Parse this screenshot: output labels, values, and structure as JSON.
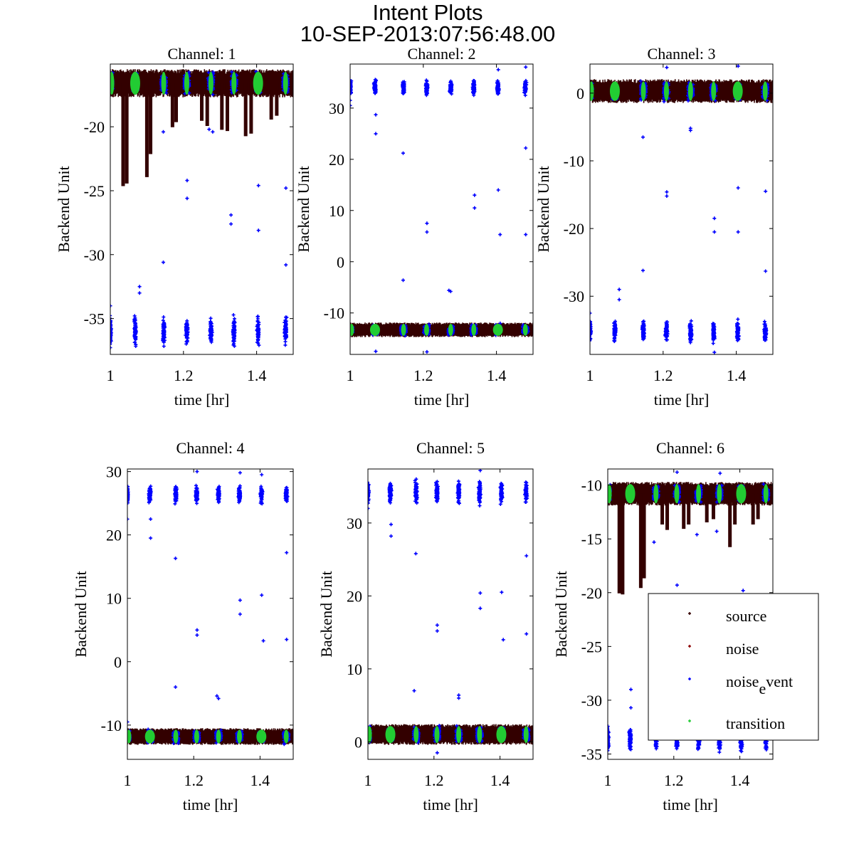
{
  "chart_data": {
    "type": "scatter",
    "title": "Intent Plots",
    "subtitle": "10-SEP-2013:07:56:48.00",
    "legend": {
      "placement": "inside-lower-right of Channel 6",
      "entries": [
        {
          "label": "source",
          "color": "#330000"
        },
        {
          "label": "noise",
          "color": "#8b0000"
        },
        {
          "label": "noise_event",
          "label_main": "noise",
          "label_sub": "e",
          "label_rest": "vent",
          "color": "#0000ff"
        },
        {
          "label": "transition",
          "color": "#22cc33"
        }
      ]
    },
    "colors": {
      "source": "#330000",
      "noise_event": "#0000ff",
      "transition": "#22cc33"
    },
    "event_times": [
      1.0,
      1.068,
      1.146,
      1.209,
      1.275,
      1.338,
      1.404,
      1.479
    ],
    "panels": [
      {
        "title": "Channel: 1",
        "xlabel": "time [hr]",
        "ylabel": "Backend Unit",
        "xlim": [
          1,
          1.5
        ],
        "ylim": [
          -37.8,
          -15.1
        ],
        "xticks": [
          1,
          1.2,
          1.4
        ],
        "xtick_labels": [
          "1",
          "1.2",
          "1.4"
        ],
        "yticks": [
          -20,
          -25,
          -30,
          -35
        ],
        "ytick_labels": [
          "-20",
          "-25",
          "-30",
          "-35"
        ],
        "source_band": {
          "center": -16.6,
          "half_width": 1.0
        },
        "event_level": {
          "center": -36.0,
          "half_width": 1.1
        },
        "dips": [
          [
            1.035,
            -24.5
          ],
          [
            1.045,
            -24.3
          ],
          [
            1.1,
            -23.8
          ],
          [
            1.11,
            -22.0
          ],
          [
            1.17,
            -19.9
          ],
          [
            1.18,
            -19.5
          ],
          [
            1.25,
            -19.4
          ],
          [
            1.265,
            -19.8
          ],
          [
            1.305,
            -20.1
          ],
          [
            1.32,
            -20.2
          ],
          [
            1.37,
            -20.6
          ],
          [
            1.385,
            -20.4
          ],
          [
            1.44,
            -19.3
          ],
          [
            1.455,
            -19.0
          ]
        ],
        "outliers": [
          [
            1.0,
            -34.0
          ],
          [
            1.08,
            -32.5
          ],
          [
            1.08,
            -33.0
          ],
          [
            1.145,
            -30.6
          ],
          [
            1.21,
            -24.2
          ],
          [
            1.21,
            -25.6
          ],
          [
            1.33,
            -26.9
          ],
          [
            1.33,
            -27.6
          ],
          [
            1.405,
            -24.6
          ],
          [
            1.405,
            -28.1
          ],
          [
            1.48,
            -24.8
          ],
          [
            1.48,
            -30.8
          ],
          [
            1.145,
            -20.4
          ],
          [
            1.27,
            -20.2
          ],
          [
            1.28,
            -20.4
          ],
          [
            1.21,
            -14.8
          ],
          [
            1.335,
            -14.7
          ],
          [
            1.48,
            -14.8
          ]
        ]
      },
      {
        "title": "Channel: 2",
        "xlabel": "time [hr]",
        "ylabel": "Backend Unit",
        "xlim": [
          1,
          1.5
        ],
        "ylim": [
          -18.1,
          38.6
        ],
        "xticks": [
          1,
          1.2,
          1.4
        ],
        "xtick_labels": [
          "1",
          "1.2",
          "1.4"
        ],
        "yticks": [
          30,
          20,
          10,
          0,
          -10
        ],
        "ytick_labels": [
          "30",
          "20",
          "10",
          "0",
          "-10"
        ],
        "source_band": {
          "center": -13.3,
          "half_width": 1.3
        },
        "event_level": {
          "center": 34.0,
          "half_width": 1.4
        },
        "dips": [],
        "outliers": [
          [
            1.0,
            30.5
          ],
          [
            1.0,
            31.5
          ],
          [
            1.07,
            28.7
          ],
          [
            1.07,
            25.0
          ],
          [
            1.145,
            21.2
          ],
          [
            1.145,
            -3.6
          ],
          [
            1.21,
            7.5
          ],
          [
            1.21,
            5.8
          ],
          [
            1.27,
            -5.6
          ],
          [
            1.275,
            -5.8
          ],
          [
            1.34,
            13.0
          ],
          [
            1.34,
            10.5
          ],
          [
            1.405,
            14.0
          ],
          [
            1.41,
            5.3
          ],
          [
            1.48,
            22.2
          ],
          [
            1.48,
            5.3
          ],
          [
            1.07,
            -17.5
          ],
          [
            1.21,
            -17.6
          ],
          [
            1.405,
            37.5
          ],
          [
            1.48,
            38.0
          ]
        ]
      },
      {
        "title": "Channel: 3",
        "xlabel": "time [hr]",
        "ylabel": "Backend Unit",
        "xlim": [
          1,
          1.5
        ],
        "ylim": [
          -38.6,
          4.3
        ],
        "xticks": [
          1,
          1.2,
          1.4
        ],
        "xtick_labels": [
          "1",
          "1.2",
          "1.4"
        ],
        "yticks": [
          0,
          -10,
          -20,
          -30
        ],
        "ytick_labels": [
          "0",
          "-10",
          "-20",
          "-30"
        ],
        "source_band": {
          "center": 0.3,
          "half_width": 1.6
        },
        "event_level": {
          "center": -35.2,
          "half_width": 1.5
        },
        "dips": [],
        "outliers": [
          [
            1.0,
            -32.5
          ],
          [
            1.08,
            -29.0
          ],
          [
            1.08,
            -30.5
          ],
          [
            1.145,
            -6.5
          ],
          [
            1.145,
            -26.2
          ],
          [
            1.21,
            -14.6
          ],
          [
            1.21,
            -15.2
          ],
          [
            1.275,
            -5.2
          ],
          [
            1.275,
            -5.5
          ],
          [
            1.34,
            -18.5
          ],
          [
            1.34,
            -20.5
          ],
          [
            1.405,
            -14.0
          ],
          [
            1.405,
            -20.5
          ],
          [
            1.48,
            -14.5
          ],
          [
            1.48,
            -26.3
          ],
          [
            1.21,
            3.8
          ],
          [
            1.405,
            4.0
          ],
          [
            1.34,
            -38.3
          ]
        ]
      },
      {
        "title": "Channel: 4",
        "xlabel": "time [hr]",
        "ylabel": "Backend Unit",
        "xlim": [
          1,
          1.5
        ],
        "ylim": [
          -15.4,
          30.4
        ],
        "xticks": [
          1,
          1.2,
          1.4
        ],
        "xtick_labels": [
          "1",
          "1.2",
          "1.4"
        ],
        "yticks": [
          30,
          20,
          10,
          0,
          -10
        ],
        "ytick_labels": [
          "30",
          "20",
          "10",
          "0",
          "-10"
        ],
        "source_band": {
          "center": -11.8,
          "half_width": 1.2
        },
        "event_level": {
          "center": 26.3,
          "half_width": 1.3
        },
        "dips": [],
        "outliers": [
          [
            1.0,
            22.5
          ],
          [
            1.07,
            22.5
          ],
          [
            1.07,
            19.5
          ],
          [
            1.145,
            16.3
          ],
          [
            1.145,
            -4.0
          ],
          [
            1.21,
            5.0
          ],
          [
            1.21,
            4.2
          ],
          [
            1.27,
            -5.4
          ],
          [
            1.275,
            -5.8
          ],
          [
            1.34,
            9.7
          ],
          [
            1.34,
            7.5
          ],
          [
            1.405,
            10.5
          ],
          [
            1.41,
            3.3
          ],
          [
            1.48,
            17.2
          ],
          [
            1.48,
            3.5
          ],
          [
            1.0,
            -9.5
          ],
          [
            1.21,
            30.0
          ],
          [
            1.34,
            29.8
          ],
          [
            1.405,
            29.5
          ]
        ]
      },
      {
        "title": "Channel: 5",
        "xlabel": "time [hr]",
        "ylabel": "Backend Unit",
        "xlim": [
          1,
          1.5
        ],
        "ylim": [
          -2.4,
          37.4
        ],
        "xticks": [
          1,
          1.2,
          1.4
        ],
        "xtick_labels": [
          "1",
          "1.2",
          "1.4"
        ],
        "yticks": [
          30,
          20,
          10,
          0
        ],
        "ytick_labels": [
          "30",
          "20",
          "10",
          "0"
        ],
        "source_band": {
          "center": 1.0,
          "half_width": 1.3
        },
        "event_level": {
          "center": 34.2,
          "half_width": 1.5
        },
        "dips": [],
        "outliers": [
          [
            1.07,
            29.8
          ],
          [
            1.07,
            28.2
          ],
          [
            1.145,
            25.8
          ],
          [
            1.14,
            7.0
          ],
          [
            1.21,
            16.0
          ],
          [
            1.21,
            15.2
          ],
          [
            1.275,
            6.4
          ],
          [
            1.275,
            6.0
          ],
          [
            1.34,
            20.4
          ],
          [
            1.34,
            18.3
          ],
          [
            1.405,
            20.5
          ],
          [
            1.41,
            14.0
          ],
          [
            1.48,
            25.5
          ],
          [
            1.48,
            14.8
          ],
          [
            1.0,
            32.0
          ],
          [
            1.21,
            -1.5
          ],
          [
            1.34,
            37.2
          ]
        ]
      },
      {
        "title": "Channel: 6",
        "xlabel": "time [hr]",
        "ylabel": "Backend Unit",
        "xlim": [
          1,
          1.5
        ],
        "ylim": [
          -35.5,
          -8.5
        ],
        "xticks": [
          1,
          1.2,
          1.4
        ],
        "xtick_labels": [
          "1",
          "1.2",
          "1.4"
        ],
        "yticks": [
          -10,
          -15,
          -20,
          -25,
          -30,
          -35
        ],
        "ytick_labels": [
          "-10",
          "-15",
          "-20",
          "-25",
          "-30",
          "-35"
        ],
        "source_band": {
          "center": -10.8,
          "half_width": 1.0
        },
        "event_level": {
          "center": -33.6,
          "half_width": 1.0
        },
        "dips": [
          [
            1.035,
            -19.9
          ],
          [
            1.045,
            -20.0
          ],
          [
            1.1,
            -19.4
          ],
          [
            1.11,
            -18.5
          ],
          [
            1.165,
            -13.5
          ],
          [
            1.18,
            -14.0
          ],
          [
            1.23,
            -13.9
          ],
          [
            1.245,
            -13.5
          ],
          [
            1.3,
            -13.3
          ],
          [
            1.32,
            -13.0
          ],
          [
            1.37,
            -15.6
          ],
          [
            1.385,
            -13.5
          ],
          [
            1.44,
            -13.5
          ],
          [
            1.455,
            -13.0
          ]
        ],
        "outliers": [
          [
            1.07,
            -29.0
          ],
          [
            1.07,
            -30.7
          ],
          [
            1.14,
            -15.3
          ],
          [
            1.21,
            -19.3
          ],
          [
            1.27,
            -14.6
          ],
          [
            1.33,
            -14.3
          ],
          [
            1.41,
            -19.8
          ],
          [
            1.48,
            -20.3
          ],
          [
            1.21,
            -8.8
          ],
          [
            1.34,
            -8.9
          ]
        ]
      }
    ]
  }
}
